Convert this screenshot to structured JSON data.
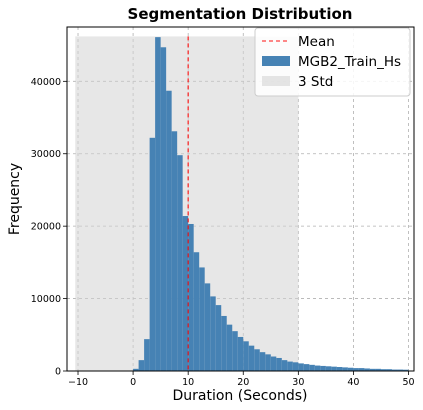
{
  "chart_data": {
    "type": "bar",
    "title": "Segmentation Distribution",
    "xlabel": "Duration (Seconds)",
    "ylabel": "Frequency",
    "xlim": [
      -12,
      51
    ],
    "ylim": [
      0,
      47500
    ],
    "x_ticks": [
      -10,
      0,
      10,
      20,
      30,
      40,
      50
    ],
    "y_ticks": [
      0,
      10000,
      20000,
      30000,
      40000
    ],
    "grid": true,
    "legend_position": "top-right",
    "legend": [
      "Mean",
      "MGB2_Train_Hs",
      "3 Std"
    ],
    "bin_width": 1,
    "series": [
      {
        "name": "MGB2_Train_Hs",
        "color": "#4682b4",
        "bin_starts": [
          0,
          1,
          2,
          3,
          4,
          5,
          6,
          7,
          8,
          9,
          10,
          11,
          12,
          13,
          14,
          15,
          16,
          17,
          18,
          19,
          20,
          21,
          22,
          23,
          24,
          25,
          26,
          27,
          28,
          29,
          30,
          31,
          32,
          33,
          34,
          35,
          36,
          37,
          38,
          39,
          40,
          41,
          42,
          43,
          44,
          45,
          46,
          47,
          48,
          49
        ],
        "values": [
          300,
          1500,
          4400,
          32200,
          46100,
          44700,
          38700,
          33100,
          29800,
          21400,
          20300,
          16400,
          14300,
          12100,
          10300,
          9100,
          7600,
          6400,
          5500,
          4700,
          4100,
          3500,
          3000,
          2600,
          2300,
          2000,
          1800,
          1500,
          1300,
          1200,
          1050,
          950,
          850,
          750,
          700,
          650,
          600,
          550,
          500,
          450,
          400,
          400,
          350,
          300,
          300,
          250,
          250,
          200,
          200,
          180
        ]
      }
    ],
    "mean": 10,
    "std_band": [
      -10.5,
      30
    ],
    "std_band_height": 46200,
    "colors": {
      "bars": "#4682b4",
      "mean_line": "#ff0000",
      "std_band": "#d3d3d3",
      "grid": "#b0b0b0"
    }
  }
}
